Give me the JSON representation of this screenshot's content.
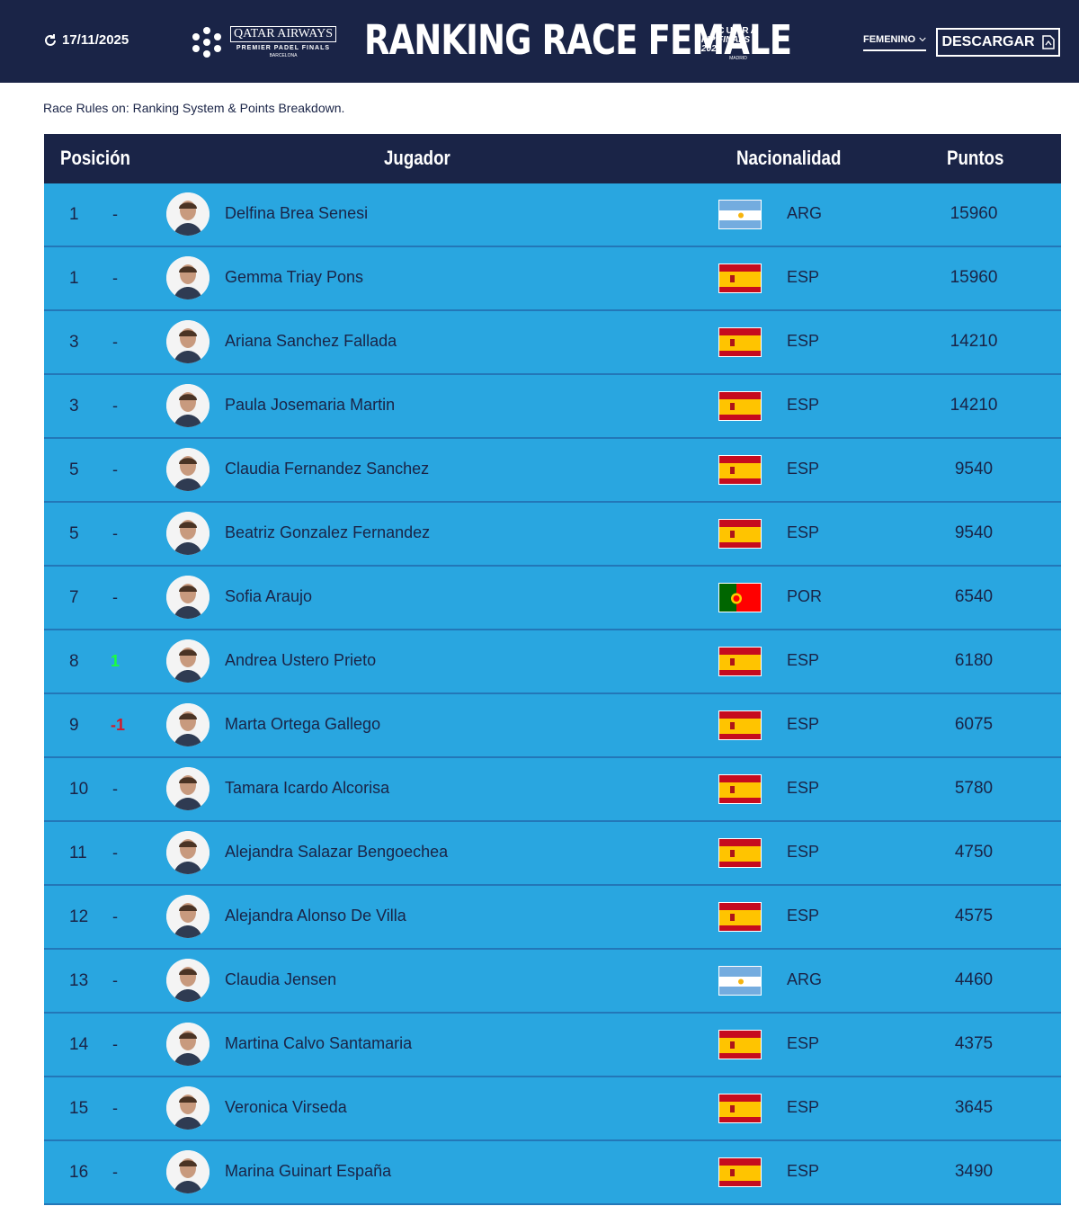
{
  "header": {
    "date": "17/11/2025",
    "sponsor_line1": "QATAR AIRWAYS",
    "sponsor_line2": "PREMIER PADEL FINALS",
    "sponsor_line3": "BARCELONA",
    "title": "RANKING RACE FEMALE",
    "cupra_line1": "CUPRA",
    "cupra_line2": "FIP FINALS | 2025",
    "cupra_line3": "MADRID",
    "gender_select": "FEMENINO",
    "download_label": "DESCARGAR"
  },
  "rules": {
    "prefix": "Race Rules on: ",
    "link": "Ranking System & Points Breakdown."
  },
  "table": {
    "columns": [
      "Posición",
      "Jugador",
      "Nacionalidad",
      "Puntos"
    ],
    "rows": [
      {
        "pos": "1",
        "move": "-",
        "move_dir": "none",
        "name": "Delfina Brea Senesi",
        "nat": "ARG",
        "points": "15960"
      },
      {
        "pos": "1",
        "move": "-",
        "move_dir": "none",
        "name": "Gemma Triay Pons",
        "nat": "ESP",
        "points": "15960"
      },
      {
        "pos": "3",
        "move": "-",
        "move_dir": "none",
        "name": "Ariana Sanchez Fallada",
        "nat": "ESP",
        "points": "14210"
      },
      {
        "pos": "3",
        "move": "-",
        "move_dir": "none",
        "name": "Paula Josemaria Martin",
        "nat": "ESP",
        "points": "14210"
      },
      {
        "pos": "5",
        "move": "-",
        "move_dir": "none",
        "name": "Claudia Fernandez Sanchez",
        "nat": "ESP",
        "points": "9540"
      },
      {
        "pos": "5",
        "move": "-",
        "move_dir": "none",
        "name": "Beatriz Gonzalez Fernandez",
        "nat": "ESP",
        "points": "9540"
      },
      {
        "pos": "7",
        "move": "-",
        "move_dir": "none",
        "name": "Sofia Araujo",
        "nat": "POR",
        "points": "6540"
      },
      {
        "pos": "8",
        "move": "1",
        "move_dir": "up",
        "name": "Andrea Ustero Prieto",
        "nat": "ESP",
        "points": "6180"
      },
      {
        "pos": "9",
        "move": "-1",
        "move_dir": "down",
        "name": "Marta Ortega Gallego",
        "nat": "ESP",
        "points": "6075"
      },
      {
        "pos": "10",
        "move": "-",
        "move_dir": "none",
        "name": "Tamara Icardo Alcorisa",
        "nat": "ESP",
        "points": "5780"
      },
      {
        "pos": "11",
        "move": "-",
        "move_dir": "none",
        "name": "Alejandra Salazar Bengoechea",
        "nat": "ESP",
        "points": "4750"
      },
      {
        "pos": "12",
        "move": "-",
        "move_dir": "none",
        "name": "Alejandra Alonso De Villa",
        "nat": "ESP",
        "points": "4575"
      },
      {
        "pos": "13",
        "move": "-",
        "move_dir": "none",
        "name": "Claudia Jensen",
        "nat": "ARG",
        "points": "4460"
      },
      {
        "pos": "14",
        "move": "-",
        "move_dir": "none",
        "name": "Martina Calvo Santamaria",
        "nat": "ESP",
        "points": "4375"
      },
      {
        "pos": "15",
        "move": "-",
        "move_dir": "none",
        "name": "Veronica Virseda",
        "nat": "ESP",
        "points": "3645"
      },
      {
        "pos": "16",
        "move": "-",
        "move_dir": "none",
        "name": "Marina Guinart España",
        "nat": "ESP",
        "points": "3490"
      }
    ]
  },
  "colors": {
    "navy": "#1a2447",
    "row_blue": "#29a6e0",
    "row_border": "#2377b8",
    "up": "#1aff3e",
    "down": "#d11a2a"
  }
}
